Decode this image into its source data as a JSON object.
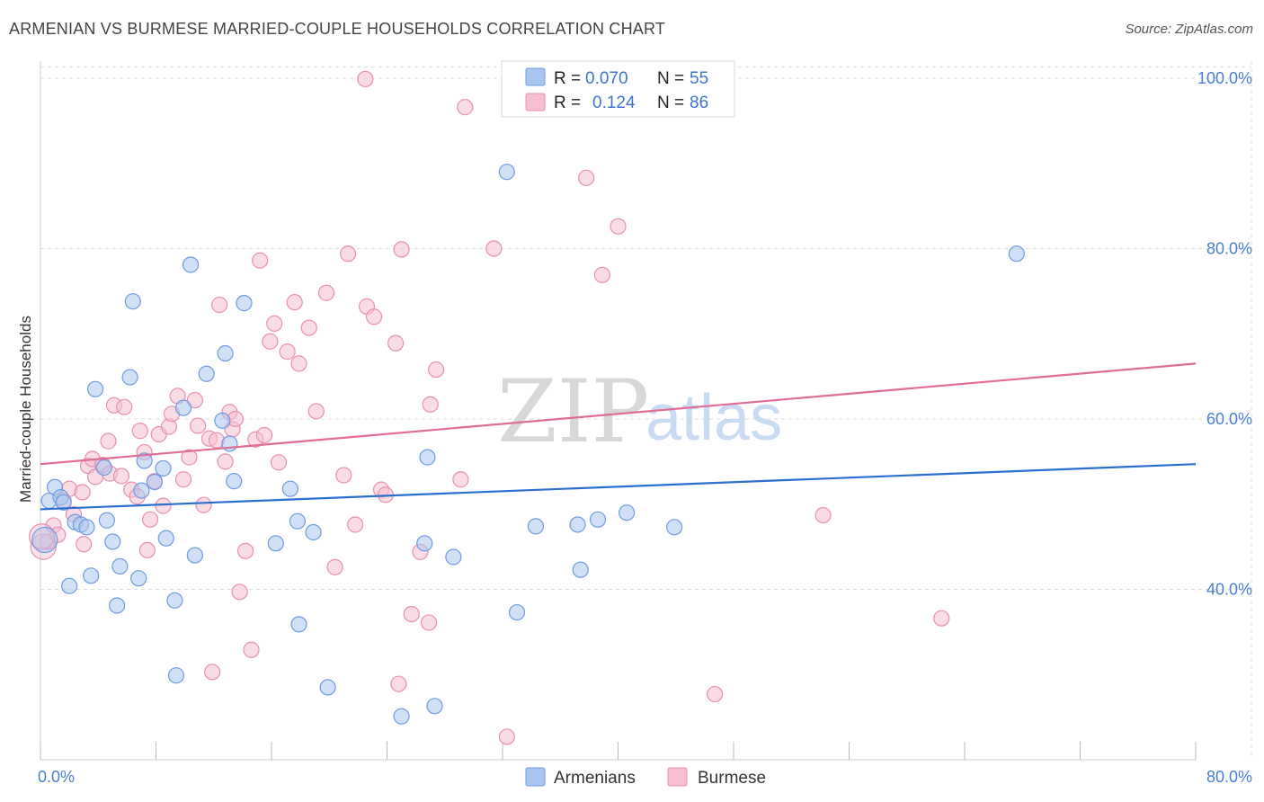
{
  "title": "ARMENIAN VS BURMESE MARRIED-COUPLE HOUSEHOLDS CORRELATION CHART",
  "source": "Source: ZipAtlas.com",
  "watermark": {
    "zip": "ZIP",
    "atlas": "atlas"
  },
  "colors": {
    "armenians_fill": "#a9c6f0",
    "armenians_stroke": "#6f9be0",
    "armenians_line": "#2a6fd0",
    "burmese_fill": "#f6bfd0",
    "burmese_stroke": "#e890b0",
    "burmese_line": "#e06d95",
    "grid": "#dddddd",
    "tick_text": "#4a7fd4"
  },
  "legend": {
    "rows": [
      {
        "r_label": "R = ",
        "r_value": "0.070",
        "n_label": "N = ",
        "n_value": "55"
      },
      {
        "r_label": "R = ",
        "r_value": "0.124",
        "n_label": "N = ",
        "n_value": "86"
      }
    ]
  },
  "chart_data": {
    "type": "scatter",
    "title": "ARMENIAN VS BURMESE MARRIED-COUPLE HOUSEHOLDS CORRELATION CHART",
    "xlabel": "",
    "ylabel": "Married-couple Households",
    "xlim": [
      0,
      80
    ],
    "ylim": [
      20,
      102
    ],
    "x_tick_labels": [
      "0.0%",
      "80.0%"
    ],
    "y_ticks": [
      40,
      60,
      80,
      100
    ],
    "y_tick_labels": [
      "40.0%",
      "60.0%",
      "80.0%",
      "100.0%"
    ],
    "grid": true,
    "legend_position": "top-center",
    "series": [
      {
        "name": "Armenians",
        "r": 0.07,
        "n": 55,
        "trend": {
          "x": [
            0,
            80
          ],
          "y": [
            49.4,
            54.7
          ]
        },
        "points": [
          [
            0.6,
            50.4
          ],
          [
            1.0,
            52.0
          ],
          [
            1.4,
            50.8
          ],
          [
            1.6,
            50.2
          ],
          [
            2.0,
            40.4
          ],
          [
            2.4,
            47.9
          ],
          [
            2.8,
            47.6
          ],
          [
            3.2,
            47.3
          ],
          [
            3.5,
            41.6
          ],
          [
            3.8,
            63.5
          ],
          [
            4.4,
            54.3
          ],
          [
            4.6,
            48.1
          ],
          [
            5.0,
            45.6
          ],
          [
            5.3,
            38.1
          ],
          [
            5.5,
            42.7
          ],
          [
            6.2,
            64.9
          ],
          [
            6.4,
            73.8
          ],
          [
            6.8,
            41.3
          ],
          [
            7.0,
            51.6
          ],
          [
            7.2,
            55.1
          ],
          [
            7.9,
            52.6
          ],
          [
            8.5,
            54.2
          ],
          [
            8.7,
            46.0
          ],
          [
            9.3,
            38.7
          ],
          [
            9.4,
            29.9
          ],
          [
            9.9,
            61.3
          ],
          [
            10.4,
            78.1
          ],
          [
            10.7,
            44.0
          ],
          [
            11.5,
            65.3
          ],
          [
            12.6,
            59.8
          ],
          [
            12.8,
            67.7
          ],
          [
            13.1,
            57.1
          ],
          [
            13.4,
            52.7
          ],
          [
            14.1,
            73.6
          ],
          [
            16.3,
            45.4
          ],
          [
            17.3,
            51.8
          ],
          [
            17.8,
            48.0
          ],
          [
            17.9,
            35.9
          ],
          [
            18.9,
            46.7
          ],
          [
            19.9,
            28.5
          ],
          [
            25.0,
            25.1
          ],
          [
            26.6,
            45.4
          ],
          [
            26.8,
            55.5
          ],
          [
            27.3,
            26.3
          ],
          [
            28.6,
            43.8
          ],
          [
            32.3,
            89.0
          ],
          [
            33.0,
            37.3
          ],
          [
            34.3,
            47.4
          ],
          [
            37.2,
            47.6
          ],
          [
            37.4,
            42.3
          ],
          [
            38.6,
            48.2
          ],
          [
            40.6,
            49.0
          ],
          [
            43.9,
            47.3
          ],
          [
            67.6,
            79.4
          ],
          [
            0.3,
            45.8
          ]
        ]
      },
      {
        "name": "Burmese",
        "r": 0.124,
        "n": 86,
        "trend": {
          "x": [
            0,
            80
          ],
          "y": [
            54.7,
            66.5
          ]
        },
        "points": [
          [
            0.2,
            45.0
          ],
          [
            0.5,
            45.6
          ],
          [
            0.9,
            47.5
          ],
          [
            1.2,
            46.4
          ],
          [
            1.6,
            50.4
          ],
          [
            2.0,
            51.8
          ],
          [
            2.3,
            48.8
          ],
          [
            2.9,
            51.4
          ],
          [
            3.0,
            45.3
          ],
          [
            3.3,
            54.5
          ],
          [
            3.6,
            55.3
          ],
          [
            3.8,
            53.2
          ],
          [
            4.3,
            54.6
          ],
          [
            4.7,
            57.4
          ],
          [
            4.8,
            53.6
          ],
          [
            5.1,
            61.6
          ],
          [
            5.6,
            53.3
          ],
          [
            5.8,
            61.4
          ],
          [
            6.3,
            51.7
          ],
          [
            6.7,
            50.9
          ],
          [
            6.9,
            58.6
          ],
          [
            7.2,
            56.1
          ],
          [
            7.4,
            44.6
          ],
          [
            7.6,
            48.2
          ],
          [
            7.9,
            52.7
          ],
          [
            8.2,
            58.2
          ],
          [
            8.5,
            49.8
          ],
          [
            8.9,
            59.1
          ],
          [
            9.1,
            60.6
          ],
          [
            9.5,
            62.7
          ],
          [
            9.9,
            52.9
          ],
          [
            10.3,
            55.5
          ],
          [
            10.7,
            62.2
          ],
          [
            10.9,
            59.2
          ],
          [
            11.3,
            49.9
          ],
          [
            11.7,
            57.7
          ],
          [
            11.9,
            30.3
          ],
          [
            12.2,
            57.5
          ],
          [
            12.4,
            73.4
          ],
          [
            12.8,
            55.0
          ],
          [
            13.1,
            60.8
          ],
          [
            13.3,
            58.8
          ],
          [
            13.5,
            60.0
          ],
          [
            13.8,
            39.7
          ],
          [
            14.2,
            44.5
          ],
          [
            14.6,
            32.9
          ],
          [
            14.9,
            57.6
          ],
          [
            15.2,
            78.6
          ],
          [
            15.5,
            58.1
          ],
          [
            15.9,
            69.1
          ],
          [
            16.2,
            71.2
          ],
          [
            16.5,
            54.9
          ],
          [
            17.1,
            67.9
          ],
          [
            17.6,
            73.7
          ],
          [
            17.9,
            66.5
          ],
          [
            18.6,
            70.7
          ],
          [
            19.1,
            60.9
          ],
          [
            19.8,
            74.8
          ],
          [
            20.4,
            42.6
          ],
          [
            21.0,
            53.4
          ],
          [
            21.3,
            79.4
          ],
          [
            21.8,
            47.6
          ],
          [
            22.5,
            99.9
          ],
          [
            22.6,
            73.2
          ],
          [
            23.1,
            72.0
          ],
          [
            23.6,
            51.7
          ],
          [
            23.9,
            51.1
          ],
          [
            24.6,
            68.9
          ],
          [
            24.8,
            28.9
          ],
          [
            25.0,
            79.9
          ],
          [
            25.7,
            37.1
          ],
          [
            26.3,
            44.4
          ],
          [
            26.9,
            36.1
          ],
          [
            27.0,
            61.7
          ],
          [
            27.4,
            65.8
          ],
          [
            29.1,
            52.9
          ],
          [
            29.4,
            96.6
          ],
          [
            31.4,
            80.0
          ],
          [
            32.3,
            22.7
          ],
          [
            37.8,
            88.3
          ],
          [
            38.9,
            76.9
          ],
          [
            40.0,
            82.6
          ],
          [
            46.7,
            27.7
          ],
          [
            54.2,
            48.7
          ],
          [
            62.4,
            36.6
          ],
          [
            0.1,
            46.2
          ]
        ]
      }
    ]
  },
  "bottom_legend": [
    {
      "label": "Armenians"
    },
    {
      "label": "Burmese"
    }
  ]
}
